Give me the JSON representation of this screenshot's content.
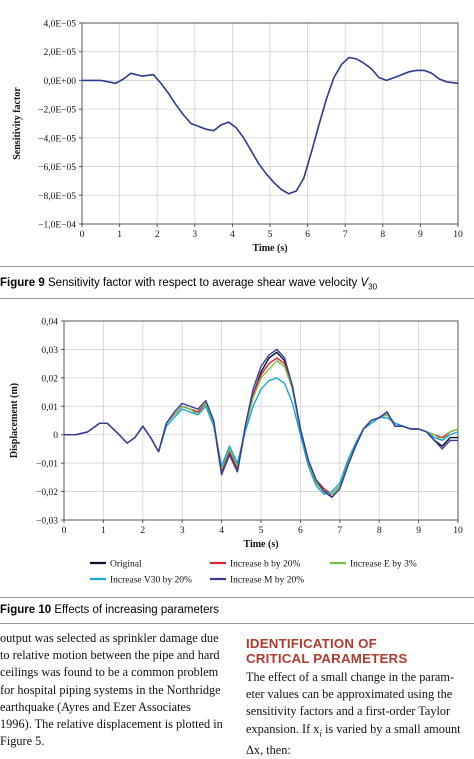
{
  "figure9": {
    "caption_label": "Figure 9",
    "caption_text": "Sensitivity factor with respect to average shear wave velocity ",
    "caption_var": "V",
    "caption_sub": "30",
    "chart_data": {
      "type": "line",
      "xlabel": "Time (s)",
      "ylabel": "Sensitivity factor",
      "xlim": [
        0,
        10
      ],
      "ylim": [
        -0.0001,
        4e-05
      ],
      "xticks": [
        0,
        1,
        2,
        3,
        4,
        5,
        6,
        7,
        8,
        9,
        10
      ],
      "yticks": [
        {
          "v": 4e-05,
          "label": "4,0E−05"
        },
        {
          "v": 2e-05,
          "label": "2,0E−05"
        },
        {
          "v": 0,
          "label": "0,0E+00"
        },
        {
          "v": -2e-05,
          "label": "−2,0E−05"
        },
        {
          "v": -4e-05,
          "label": "−4,0E−05"
        },
        {
          "v": -6e-05,
          "label": "−6,0E−05"
        },
        {
          "v": -8e-05,
          "label": "−8,0E−05"
        },
        {
          "v": -0.0001,
          "label": "−1,0E−04"
        }
      ],
      "grid": true,
      "series": [
        {
          "color": "#2a3b8f",
          "x": [
            0,
            0.5,
            0.9,
            1.1,
            1.3,
            1.6,
            1.9,
            2.1,
            2.3,
            2.5,
            2.7,
            2.9,
            3.1,
            3.3,
            3.5,
            3.7,
            3.9,
            4.1,
            4.3,
            4.5,
            4.7,
            4.9,
            5.1,
            5.3,
            5.5,
            5.7,
            5.9,
            6.1,
            6.3,
            6.5,
            6.7,
            6.9,
            7.1,
            7.3,
            7.5,
            7.7,
            7.9,
            8.1,
            8.3,
            8.5,
            8.7,
            8.9,
            9.1,
            9.3,
            9.5,
            9.7,
            10
          ],
          "y": [
            0,
            0,
            -2e-06,
            1e-06,
            5e-06,
            3e-06,
            4e-06,
            -2e-06,
            -9e-06,
            -1.7e-05,
            -2.4e-05,
            -3e-05,
            -3.2e-05,
            -3.4e-05,
            -3.5e-05,
            -3.1e-05,
            -2.9e-05,
            -3.3e-05,
            -4e-05,
            -4.9e-05,
            -5.8e-05,
            -6.5e-05,
            -7.1e-05,
            -7.6e-05,
            -7.9e-05,
            -7.7e-05,
            -6.8e-05,
            -5e-05,
            -3.1e-05,
            -1.3e-05,
            2e-06,
            1.1e-05,
            1.6e-05,
            1.5e-05,
            1.2e-05,
            8e-06,
            2e-06,
            0,
            2e-06,
            4e-06,
            6e-06,
            7e-06,
            7e-06,
            5e-06,
            1e-06,
            -1e-06,
            -2e-06
          ]
        }
      ]
    }
  },
  "figure10": {
    "caption_label": "Figure 10",
    "caption_text": "Effects of increasing parameters",
    "chart_data": {
      "type": "line",
      "xlabel": "Time (s)",
      "ylabel": "Displacement (m)",
      "xlim": [
        0,
        10
      ],
      "ylim": [
        -0.03,
        0.04
      ],
      "xticks": [
        0,
        1,
        2,
        3,
        4,
        5,
        6,
        7,
        8,
        9,
        10
      ],
      "yticks": [
        {
          "v": 0.04,
          "label": "0,04"
        },
        {
          "v": 0.03,
          "label": "0,03"
        },
        {
          "v": 0.02,
          "label": "0,02"
        },
        {
          "v": 0.01,
          "label": "0,01"
        },
        {
          "v": 0,
          "label": "0"
        },
        {
          "v": -0.01,
          "label": "−0,01"
        },
        {
          "v": -0.02,
          "label": "−0,02"
        },
        {
          "v": -0.03,
          "label": "−0,03"
        }
      ],
      "grid": true,
      "legend_placement": "bottom",
      "x": [
        0,
        0.3,
        0.6,
        0.9,
        1.1,
        1.4,
        1.6,
        1.8,
        2.0,
        2.2,
        2.4,
        2.6,
        2.8,
        3.0,
        3.2,
        3.4,
        3.6,
        3.8,
        4.0,
        4.2,
        4.4,
        4.6,
        4.8,
        5.0,
        5.2,
        5.4,
        5.6,
        5.8,
        6.0,
        6.2,
        6.4,
        6.6,
        6.8,
        7.0,
        7.2,
        7.4,
        7.6,
        7.8,
        8.0,
        8.2,
        8.4,
        8.6,
        8.8,
        9.0,
        9.2,
        9.4,
        9.6,
        9.8,
        10
      ],
      "series": [
        {
          "name": "Original",
          "color": "#0d0d2e",
          "values": [
            0,
            0,
            0.001,
            0.004,
            0.004,
            0,
            -0.003,
            -0.001,
            0.003,
            -0.001,
            -0.006,
            0.004,
            0.007,
            0.01,
            0.009,
            0.008,
            0.011,
            0.004,
            -0.014,
            -0.007,
            -0.013,
            0.002,
            0.014,
            0.022,
            0.027,
            0.029,
            0.026,
            0.017,
            0.002,
            -0.009,
            -0.016,
            -0.019,
            -0.022,
            -0.019,
            -0.011,
            -0.004,
            0.002,
            0.005,
            0.006,
            0.008,
            0.003,
            0.003,
            0.002,
            0.002,
            0.001,
            -0.002,
            -0.004,
            -0.001,
            -0.001
          ]
        },
        {
          "name": "Increase b by 20%",
          "color": "#d6262a",
          "values": [
            0,
            0,
            0.001,
            0.004,
            0.004,
            0,
            -0.003,
            -0.001,
            0.003,
            -0.001,
            -0.006,
            0.004,
            0.007,
            0.01,
            0.009,
            0.008,
            0.011,
            0.004,
            -0.013,
            -0.006,
            -0.012,
            0.002,
            0.014,
            0.021,
            0.025,
            0.027,
            0.025,
            0.016,
            0.002,
            -0.009,
            -0.016,
            -0.019,
            -0.021,
            -0.018,
            -0.01,
            -0.004,
            0.002,
            0.005,
            0.006,
            0.007,
            0.004,
            0.003,
            0.002,
            0.002,
            0.001,
            0,
            -0.001,
            0.001,
            0.002
          ]
        },
        {
          "name": "Increase E by 3%",
          "color": "#77c043",
          "values": [
            0,
            0,
            0.001,
            0.004,
            0.004,
            0,
            -0.003,
            -0.001,
            0.003,
            -0.001,
            -0.006,
            0.004,
            0.007,
            0.01,
            0.009,
            0.007,
            0.011,
            0.004,
            -0.012,
            -0.005,
            -0.011,
            0.002,
            0.013,
            0.02,
            0.023,
            0.026,
            0.024,
            0.016,
            0.001,
            -0.01,
            -0.017,
            -0.02,
            -0.021,
            -0.018,
            -0.01,
            -0.003,
            0.002,
            0.005,
            0.006,
            0.007,
            0.004,
            0.003,
            0.002,
            0.002,
            0.001,
            0,
            -0.002,
            0.001,
            0.002
          ]
        },
        {
          "name": "Increase V30 by 20%",
          "color": "#1aa5dd",
          "values": [
            0,
            0,
            0.001,
            0.004,
            0.004,
            0,
            -0.003,
            -0.001,
            0.003,
            -0.001,
            -0.006,
            0.003,
            0.006,
            0.009,
            0.008,
            0.007,
            0.01,
            0.003,
            -0.011,
            -0.004,
            -0.01,
            0.001,
            0.01,
            0.016,
            0.019,
            0.02,
            0.018,
            0.011,
            0,
            -0.011,
            -0.018,
            -0.021,
            -0.02,
            -0.017,
            -0.009,
            -0.003,
            0.002,
            0.004,
            0.006,
            0.006,
            0.004,
            0.003,
            0.002,
            0.002,
            0.001,
            -0.001,
            -0.002,
            0,
            0.001
          ]
        },
        {
          "name": "Increase M by 20%",
          "color": "#3a3a9c",
          "values": [
            0,
            0,
            0.001,
            0.004,
            0.004,
            0,
            -0.003,
            -0.001,
            0.003,
            -0.001,
            -0.006,
            0.004,
            0.008,
            0.011,
            0.01,
            0.009,
            0.012,
            0.005,
            -0.014,
            -0.007,
            -0.013,
            0.003,
            0.016,
            0.024,
            0.028,
            0.03,
            0.027,
            0.017,
            0.002,
            -0.009,
            -0.016,
            -0.02,
            -0.022,
            -0.019,
            -0.011,
            -0.004,
            0.002,
            0.005,
            0.006,
            0.008,
            0.003,
            0.003,
            0.002,
            0.002,
            0.001,
            -0.002,
            -0.005,
            -0.002,
            -0.002
          ]
        }
      ],
      "legend": [
        {
          "label": "Original",
          "color": "#0d0d2e"
        },
        {
          "label": "Increase b by 20%",
          "color": "#d6262a"
        },
        {
          "label": "Increase E by 3%",
          "color": "#77c043"
        },
        {
          "label": "Increase V30 by 20%",
          "color": "#1aa5dd"
        },
        {
          "label": "Increase M by 20%",
          "color": "#3a3a9c"
        }
      ]
    }
  },
  "body_left": [
    "output was selected as sprinkler damage due",
    "to relative motion between the pipe and hard",
    "ceilings was found to be a common problem",
    "for hospital piping systems in the Northridge",
    "earthquake (Ayres and Ezer Associates",
    "1996). The relative displacement is plotted in",
    "Figure 5."
  ],
  "section": {
    "heading_line1": "IDENTIFICATION OF",
    "heading_line2": "CRITICAL PARAMETERS",
    "lines": [
      "The effect of a small change in the param-",
      "eter values can be approximated using the",
      "sensitivity factors and a first-order Taylor",
      "expansion. If x",
      "i",
      " is varied by a small amount",
      "Δx",
      ", then:"
    ]
  }
}
